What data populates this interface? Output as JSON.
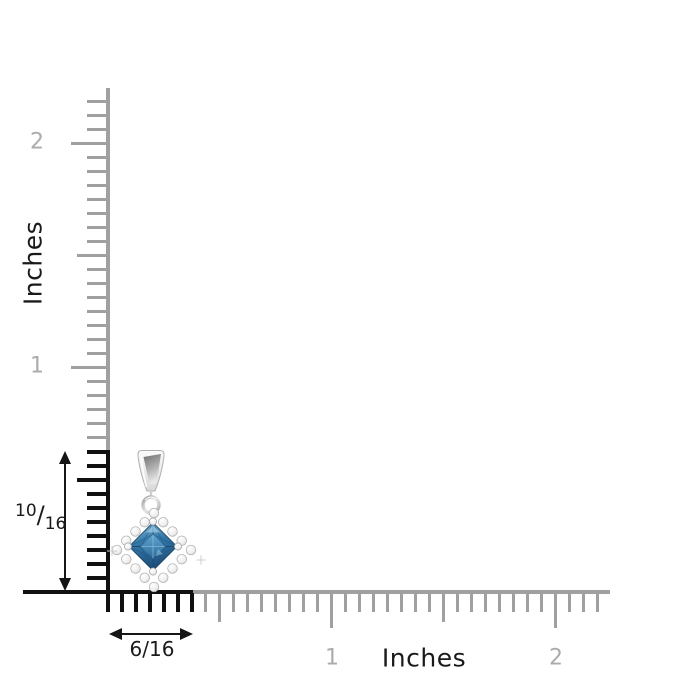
{
  "scene": {
    "description": "Pendant size reference diagram with inch rulers",
    "background_color": "#ffffff"
  },
  "vertical_ruler": {
    "axis_label": "Inches",
    "tick_labels": [
      {
        "text": "2"
      },
      {
        "text": "1"
      }
    ],
    "total_sixteenths": 35,
    "highlighted_sixteenths": 10,
    "ruler_color": "#a0a0a0",
    "highlight_color": "#111111",
    "tick_label_color": "#ababab"
  },
  "horizontal_ruler": {
    "axis_label": "Inches",
    "tick_labels": [
      {
        "text": "1"
      },
      {
        "text": "2"
      }
    ],
    "total_sixteenths": 35,
    "highlighted_sixteenths": 6,
    "ruler_color": "#a0a0a0",
    "highlight_color": "#111111",
    "tick_label_color": "#ababab"
  },
  "measurements": {
    "pendant_height": {
      "numerator": "10",
      "separator": "/",
      "denominator": "16"
    },
    "pendant_width": {
      "text": "6/16"
    }
  },
  "pendant": {
    "name": "Princess-cut blue diamond halo pendant",
    "stone_color_main": "#3579a8",
    "stone_color_dark": "#1d4e7a",
    "stone_color_light": "#85bcdd",
    "halo_stone_color": "#f2f2f2",
    "metal_color": "#d9d9d9"
  }
}
